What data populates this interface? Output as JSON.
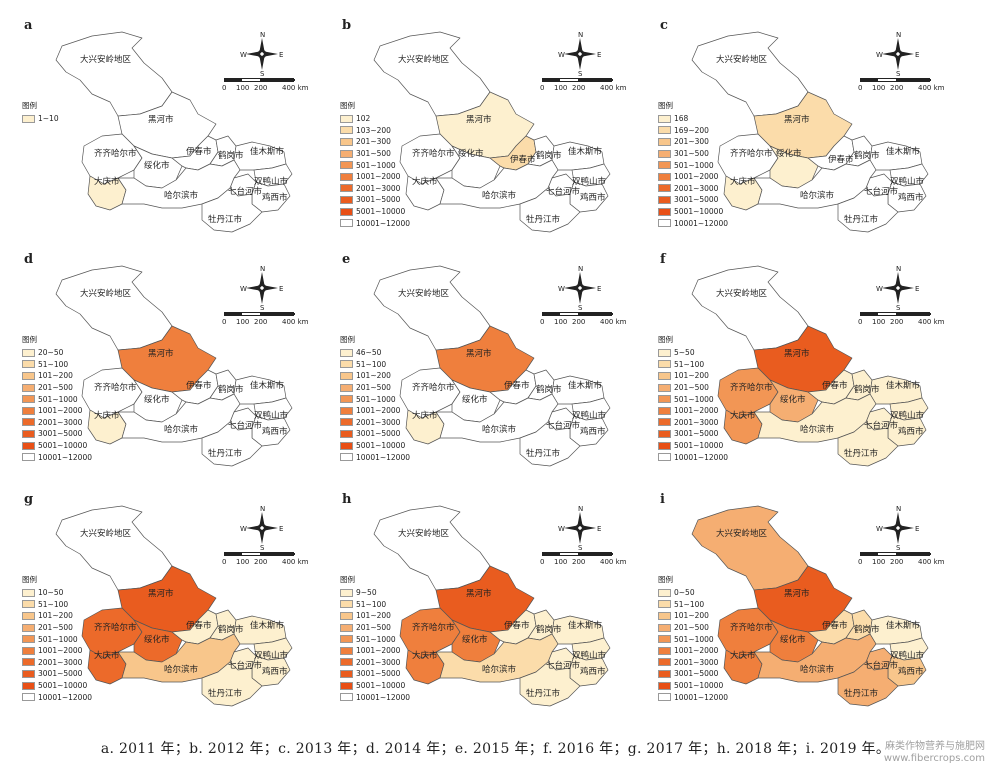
{
  "palette": {
    "c0": "#ffffff",
    "c1": "#fdf0cf",
    "c2": "#fbdcaa",
    "c3": "#f8c68b",
    "c4": "#f5ae72",
    "c5": "#f29655",
    "c6": "#ef7f3d",
    "c7": "#ec6a2a",
    "c8": "#e95c1f",
    "c9": "#e84f16"
  },
  "legend_title": "图例",
  "compass": {
    "n": "N",
    "s": "S",
    "e": "E",
    "w": "W"
  },
  "scale": {
    "l0": "0",
    "l1": "100",
    "l2": "200",
    "l3": "400 km"
  },
  "regions": [
    {
      "id": "daxinganling",
      "name": "大兴安岭地区"
    },
    {
      "id": "heihe",
      "name": "黑河市"
    },
    {
      "id": "qiqihar",
      "name": "齐齐哈尔市"
    },
    {
      "id": "suihua",
      "name": "绥化市"
    },
    {
      "id": "yichun",
      "name": "伊春市"
    },
    {
      "id": "hegang",
      "name": "鹤岗市"
    },
    {
      "id": "jiamusi",
      "name": "佳木斯市"
    },
    {
      "id": "shuangyashan",
      "name": "双鸭山市"
    },
    {
      "id": "daqing",
      "name": "大庆市"
    },
    {
      "id": "qitaihe",
      "name": "七台河市"
    },
    {
      "id": "jixi",
      "name": "鸡西市"
    },
    {
      "id": "harbin",
      "name": "哈尔滨市"
    },
    {
      "id": "mudanjiang",
      "name": "牡丹江市"
    }
  ],
  "panels": [
    {
      "letter": "a",
      "legend": [
        "1~10"
      ],
      "fills": {
        "daqing": 1
      }
    },
    {
      "letter": "b",
      "legend": [
        "102",
        "103~200",
        "201~300",
        "301~500",
        "501~1000",
        "1001~2000",
        "2001~3000",
        "3001~5000",
        "5001~10000",
        "10001~12000"
      ],
      "fills": {
        "heihe": 1,
        "yichun": 2
      }
    },
    {
      "letter": "c",
      "legend": [
        "168",
        "169~200",
        "201~300",
        "301~500",
        "501~1000",
        "1001~2000",
        "2001~3000",
        "3001~5000",
        "5001~10000",
        "10001~12000"
      ],
      "fills": {
        "heihe": 2,
        "suihua": 1,
        "daqing": 1
      }
    },
    {
      "letter": "d",
      "legend": [
        "20~50",
        "51~100",
        "101~200",
        "201~500",
        "501~1000",
        "1001~2000",
        "2001~3000",
        "3001~5000",
        "5001~10000",
        "10001~12000"
      ],
      "fills": {
        "heihe": 6,
        "daqing": 1
      }
    },
    {
      "letter": "e",
      "legend": [
        "46~50",
        "51~100",
        "101~200",
        "201~500",
        "501~1000",
        "1001~2000",
        "2001~3000",
        "3001~5000",
        "5001~10000",
        "10001~12000"
      ],
      "fills": {
        "heihe": 6,
        "daqing": 1
      }
    },
    {
      "letter": "f",
      "legend": [
        "5~50",
        "51~100",
        "101~200",
        "201~500",
        "501~1000",
        "1001~2000",
        "2001~3000",
        "3001~5000",
        "5001~10000",
        "10001~12000"
      ],
      "fills": {
        "heihe": 8,
        "qiqihar": 5,
        "suihua": 4,
        "daqing": 5,
        "yichun": 1,
        "hegang": 1,
        "jiamusi": 1,
        "shuangyashan": 1,
        "qitaihe": 1,
        "jixi": 1,
        "harbin": 1,
        "mudanjiang": 1
      }
    },
    {
      "letter": "g",
      "legend": [
        "10~50",
        "51~100",
        "101~200",
        "201~500",
        "501~1000",
        "1001~2000",
        "2001~3000",
        "3001~5000",
        "5001~10000",
        "10001~12000"
      ],
      "fills": {
        "heihe": 8,
        "qiqihar": 7,
        "suihua": 7,
        "daqing": 7,
        "yichun": 1,
        "hegang": 1,
        "jiamusi": 1,
        "shuangyashan": 1,
        "qitaihe": 1,
        "jixi": 1,
        "harbin": 3,
        "mudanjiang": 1
      }
    },
    {
      "letter": "h",
      "legend": [
        "9~50",
        "51~100",
        "101~200",
        "201~500",
        "501~1000",
        "1001~2000",
        "2001~3000",
        "3001~5000",
        "5001~10000",
        "10001~12000"
      ],
      "fills": {
        "heihe": 8,
        "qiqihar": 6,
        "suihua": 6,
        "daqing": 6,
        "yichun": 1,
        "hegang": 1,
        "jiamusi": 1,
        "shuangyashan": 1,
        "qitaihe": 1,
        "jixi": 1,
        "harbin": 2,
        "mudanjiang": 1
      }
    },
    {
      "letter": "i",
      "legend": [
        "0~50",
        "51~100",
        "101~200",
        "201~500",
        "501~1000",
        "1001~2000",
        "2001~3000",
        "3001~5000",
        "5001~10000",
        "10001~12000"
      ],
      "fills": {
        "daxinganling": 4,
        "heihe": 8,
        "qiqihar": 6,
        "suihua": 6,
        "daqing": 6,
        "yichun": 2,
        "hegang": 2,
        "jiamusi": 1,
        "shuangyashan": 1,
        "qitaihe": 4,
        "jixi": 3,
        "harbin": 4,
        "mudanjiang": 4
      }
    }
  ],
  "caption": "a. 2011 年；b. 2012 年；c. 2013 年；d. 2014 年；e. 2015 年；f. 2016 年；g. 2017 年；h. 2018 年；i. 2019 年。",
  "watermark": {
    "line1": "麻类作物营养与施肥网",
    "line2": "www.fibercrops.com"
  }
}
